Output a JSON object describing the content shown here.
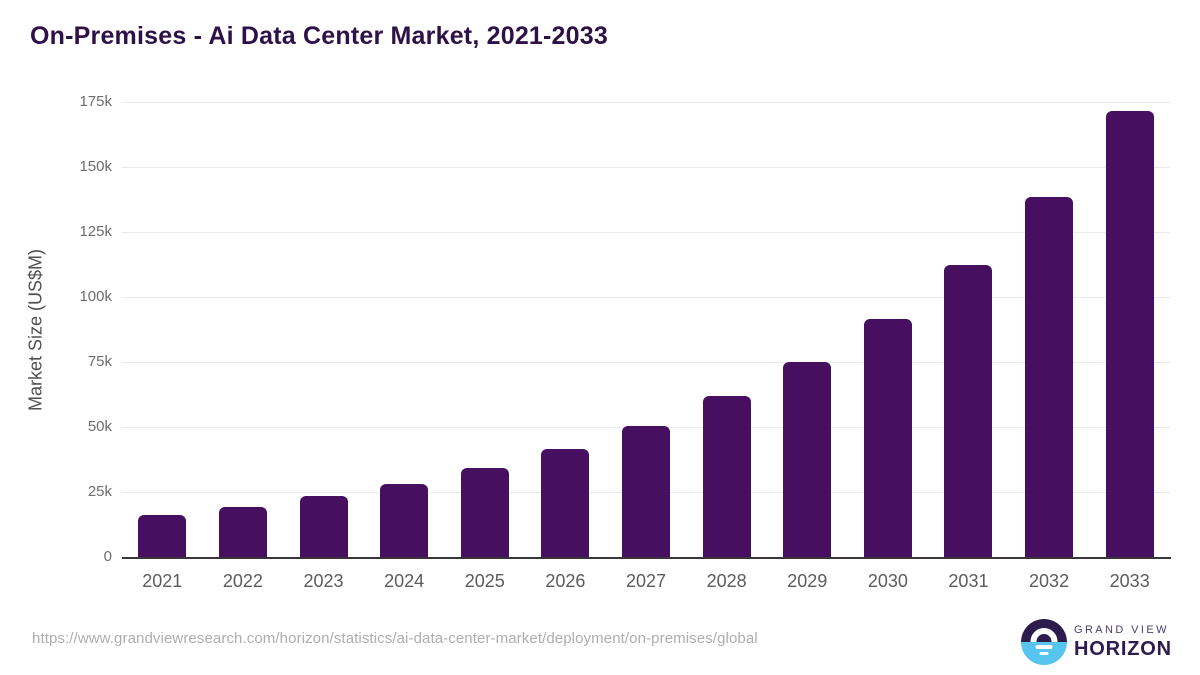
{
  "title": "On-Premises - Ai Data Center Market, 2021-2033",
  "chart_data": {
    "type": "bar",
    "title": "On-Premises - Ai Data Center Market, 2021-2033",
    "categories": [
      "2021",
      "2022",
      "2023",
      "2024",
      "2025",
      "2026",
      "2027",
      "2028",
      "2029",
      "2030",
      "2031",
      "2032",
      "2033"
    ],
    "values": [
      16000,
      19400,
      23300,
      28000,
      34200,
      41500,
      50500,
      61800,
      75000,
      91500,
      112500,
      138400,
      171500
    ],
    "xlabel": "",
    "ylabel": "Market Size (US$M)",
    "ylim": [
      0,
      175000
    ],
    "y_tick_values": [
      0,
      25000,
      50000,
      75000,
      100000,
      125000,
      150000,
      175000
    ],
    "y_tick_labels": [
      "0",
      "25k",
      "50k",
      "75k",
      "100k",
      "125k",
      "150k",
      "175k"
    ],
    "grid": true,
    "legend": "none",
    "bar_color": "#460f5f"
  },
  "footer": {
    "source_url": "https://www.grandviewresearch.com/horizon/statistics/ai-data-center-market/deployment/on-premises/global",
    "logo": {
      "line1": "GRAND VIEW",
      "line2": "HORIZON"
    }
  },
  "colors": {
    "title": "#2e1148",
    "bar": "#460f5f",
    "gridline": "#e9e9e9",
    "axis_line": "#39353b",
    "tick_text": "#6d6d6d",
    "url_text": "#aeaeae",
    "logo_top": "#2d1c4e",
    "logo_bottom": "#57c5f0"
  }
}
